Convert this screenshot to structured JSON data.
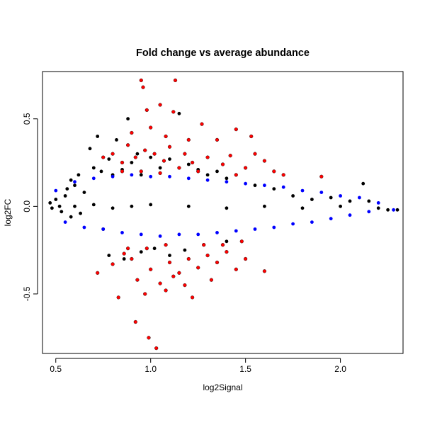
{
  "chart_data": {
    "type": "scatter",
    "title": "Fold change vs average abundance",
    "xlabel": "log2Signal",
    "ylabel": "log2FC",
    "xlim": [
      0.43,
      2.33
    ],
    "ylim": [
      -0.84,
      0.77
    ],
    "xticks": [
      0.5,
      1.0,
      1.5,
      2.0
    ],
    "xtick_labels": [
      "0.5",
      "1.0",
      "1.5",
      "2.0"
    ],
    "yticks": [
      -0.5,
      0.0,
      0.5
    ],
    "ytick_labels": [
      "-0.5",
      "0.0",
      "0.5"
    ],
    "grid": false,
    "legend": "none",
    "series": [
      {
        "color": "#000000",
        "values": [
          [
            0.47,
            0.02
          ],
          [
            0.48,
            -0.01
          ],
          [
            0.5,
            0.04
          ],
          [
            0.52,
            0.0
          ],
          [
            0.53,
            -0.03
          ],
          [
            0.55,
            0.06
          ],
          [
            0.56,
            0.1
          ],
          [
            0.58,
            0.15
          ],
          [
            0.58,
            -0.06
          ],
          [
            0.6,
            0.12
          ],
          [
            0.62,
            0.18
          ],
          [
            0.63,
            -0.04
          ],
          [
            0.65,
            0.08
          ],
          [
            0.68,
            0.33
          ],
          [
            0.7,
            0.22
          ],
          [
            0.72,
            0.4
          ],
          [
            0.74,
            0.2
          ],
          [
            0.75,
            -0.13
          ],
          [
            0.78,
            0.27
          ],
          [
            0.8,
            0.18
          ],
          [
            0.82,
            0.38
          ],
          [
            0.85,
            0.21
          ],
          [
            0.88,
            0.5
          ],
          [
            0.9,
            0.25
          ],
          [
            0.93,
            0.3
          ],
          [
            0.95,
            0.18
          ],
          [
            1.0,
            0.28
          ],
          [
            1.05,
            0.22
          ],
          [
            1.1,
            0.27
          ],
          [
            1.15,
            0.53
          ],
          [
            1.2,
            0.24
          ],
          [
            1.25,
            0.21
          ],
          [
            1.3,
            0.18
          ],
          [
            1.35,
            0.2
          ],
          [
            1.4,
            0.16
          ],
          [
            0.78,
            -0.28
          ],
          [
            0.86,
            -0.3
          ],
          [
            0.95,
            -0.26
          ],
          [
            1.02,
            -0.24
          ],
          [
            1.1,
            -0.28
          ],
          [
            1.18,
            -0.25
          ],
          [
            1.28,
            -0.22
          ],
          [
            1.4,
            -0.2
          ],
          [
            1.55,
            0.12
          ],
          [
            1.65,
            0.1
          ],
          [
            1.75,
            0.06
          ],
          [
            1.85,
            0.04
          ],
          [
            1.95,
            0.05
          ],
          [
            2.05,
            0.03
          ],
          [
            2.12,
            0.13
          ],
          [
            2.15,
            0.03
          ],
          [
            2.2,
            -0.01
          ],
          [
            2.25,
            -0.02
          ],
          [
            2.3,
            -0.02
          ],
          [
            0.6,
            0.0
          ],
          [
            0.7,
            0.01
          ],
          [
            0.8,
            -0.01
          ],
          [
            0.9,
            0.0
          ],
          [
            1.0,
            0.01
          ],
          [
            1.2,
            0.0
          ],
          [
            1.4,
            -0.01
          ],
          [
            1.6,
            0.0
          ],
          [
            1.8,
            -0.01
          ],
          [
            2.0,
            0.0
          ]
        ]
      },
      {
        "color": "#ff0000",
        "values": [
          [
            0.95,
            0.72
          ],
          [
            0.96,
            0.68
          ],
          [
            1.13,
            0.72
          ],
          [
            0.98,
            0.55
          ],
          [
            1.05,
            0.58
          ],
          [
            1.12,
            0.54
          ],
          [
            0.9,
            0.42
          ],
          [
            1.0,
            0.45
          ],
          [
            1.08,
            0.4
          ],
          [
            1.2,
            0.38
          ],
          [
            1.27,
            0.47
          ],
          [
            1.35,
            0.38
          ],
          [
            1.45,
            0.44
          ],
          [
            1.53,
            0.4
          ],
          [
            0.75,
            0.28
          ],
          [
            0.8,
            0.3
          ],
          [
            0.85,
            0.25
          ],
          [
            0.88,
            0.35
          ],
          [
            0.92,
            0.28
          ],
          [
            0.97,
            0.32
          ],
          [
            1.02,
            0.3
          ],
          [
            1.07,
            0.26
          ],
          [
            1.1,
            0.34
          ],
          [
            1.15,
            0.22
          ],
          [
            1.18,
            0.3
          ],
          [
            1.22,
            0.25
          ],
          [
            1.3,
            0.28
          ],
          [
            1.38,
            0.24
          ],
          [
            1.42,
            0.29
          ],
          [
            1.5,
            0.22
          ],
          [
            1.55,
            0.3
          ],
          [
            1.6,
            0.26
          ],
          [
            1.65,
            0.2
          ],
          [
            1.7,
            0.18
          ],
          [
            1.9,
            0.17
          ],
          [
            0.85,
            0.2
          ],
          [
            0.95,
            0.2
          ],
          [
            1.05,
            0.19
          ],
          [
            1.25,
            0.2
          ],
          [
            1.45,
            0.18
          ],
          [
            0.72,
            -0.38
          ],
          [
            0.8,
            -0.33
          ],
          [
            0.83,
            -0.52
          ],
          [
            0.86,
            -0.27
          ],
          [
            0.9,
            -0.3
          ],
          [
            0.92,
            -0.66
          ],
          [
            0.93,
            -0.42
          ],
          [
            0.97,
            -0.5
          ],
          [
            0.99,
            -0.75
          ],
          [
            1.0,
            -0.36
          ],
          [
            1.03,
            -0.81
          ],
          [
            1.05,
            -0.44
          ],
          [
            1.08,
            -0.48
          ],
          [
            1.1,
            -0.32
          ],
          [
            1.12,
            -0.4
          ],
          [
            1.15,
            -0.38
          ],
          [
            1.18,
            -0.45
          ],
          [
            1.2,
            -0.3
          ],
          [
            1.22,
            -0.52
          ],
          [
            1.25,
            -0.35
          ],
          [
            1.3,
            -0.28
          ],
          [
            1.32,
            -0.42
          ],
          [
            1.35,
            -0.32
          ],
          [
            1.4,
            -0.26
          ],
          [
            1.45,
            -0.36
          ],
          [
            1.5,
            -0.3
          ],
          [
            1.6,
            -0.37
          ],
          [
            0.88,
            -0.24
          ],
          [
            0.98,
            -0.24
          ],
          [
            1.08,
            -0.22
          ],
          [
            1.28,
            -0.22
          ],
          [
            1.38,
            -0.22
          ],
          [
            1.48,
            -0.2
          ]
        ]
      },
      {
        "color": "#0000ff",
        "values": [
          [
            0.5,
            0.09
          ],
          [
            0.55,
            -0.09
          ],
          [
            0.6,
            0.14
          ],
          [
            0.65,
            -0.12
          ],
          [
            0.7,
            0.16
          ],
          [
            0.75,
            -0.13
          ],
          [
            0.8,
            0.17
          ],
          [
            0.85,
            -0.15
          ],
          [
            0.9,
            0.18
          ],
          [
            0.95,
            -0.16
          ],
          [
            1.0,
            0.17
          ],
          [
            1.05,
            -0.17
          ],
          [
            1.1,
            0.17
          ],
          [
            1.15,
            -0.16
          ],
          [
            1.2,
            0.16
          ],
          [
            1.25,
            -0.16
          ],
          [
            1.3,
            0.15
          ],
          [
            1.35,
            -0.15
          ],
          [
            1.4,
            0.14
          ],
          [
            1.45,
            -0.14
          ],
          [
            1.5,
            0.13
          ],
          [
            1.55,
            -0.13
          ],
          [
            1.6,
            0.12
          ],
          [
            1.65,
            -0.12
          ],
          [
            1.7,
            0.11
          ],
          [
            1.75,
            -0.1
          ],
          [
            1.8,
            0.09
          ],
          [
            1.85,
            -0.09
          ],
          [
            1.9,
            0.08
          ],
          [
            1.95,
            -0.07
          ],
          [
            2.0,
            0.06
          ],
          [
            2.05,
            -0.05
          ],
          [
            2.1,
            0.05
          ],
          [
            2.15,
            -0.03
          ],
          [
            2.2,
            0.02
          ],
          [
            2.28,
            -0.02
          ]
        ]
      }
    ]
  }
}
